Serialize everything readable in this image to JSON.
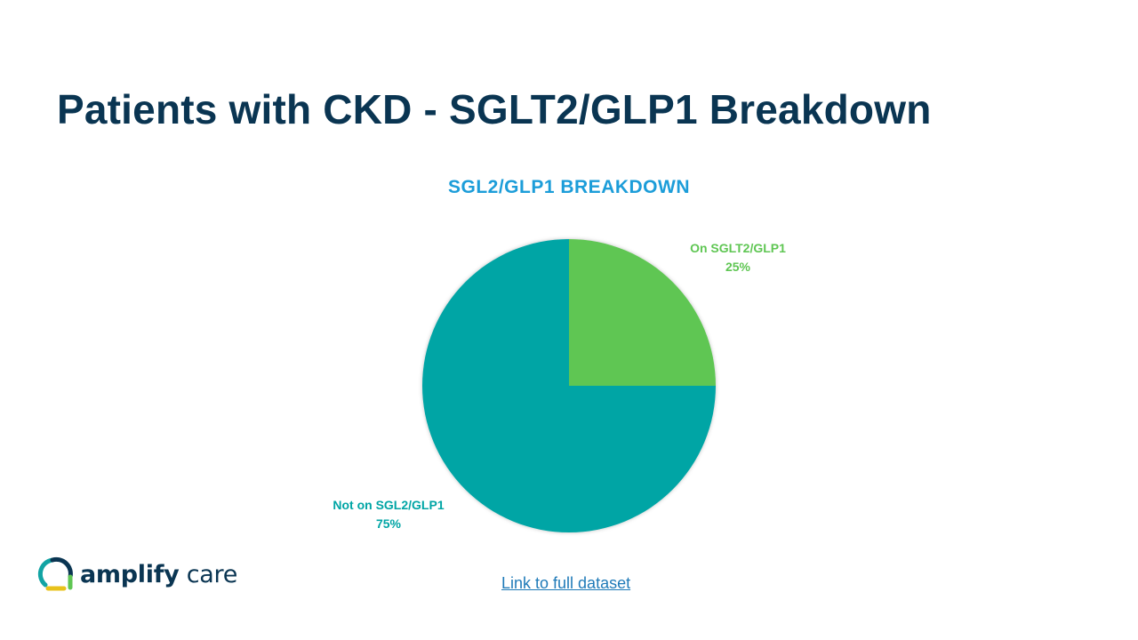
{
  "slide": {
    "title": "Patients with CKD - SGLT2/GLP1 Breakdown",
    "link_text": "Link to full dataset"
  },
  "logo": {
    "word1": "amplify",
    "word2": "care",
    "colors": {
      "navy": "#0a3552",
      "teal": "#12a4a4",
      "green": "#5fc653",
      "yellow": "#e8c21b"
    }
  },
  "chart_data": {
    "type": "pie",
    "title": "SGL2/GLP1 BREAKDOWN",
    "slices": [
      {
        "label": "On SGLT2/GLP1",
        "value": 25,
        "value_label": "25%",
        "color": "#5fc653"
      },
      {
        "label": "Not on SGL2/GLP1",
        "value": 75,
        "value_label": "75%",
        "color": "#00a5a5"
      }
    ],
    "start_angle_deg": 0,
    "direction": "clockwise"
  }
}
